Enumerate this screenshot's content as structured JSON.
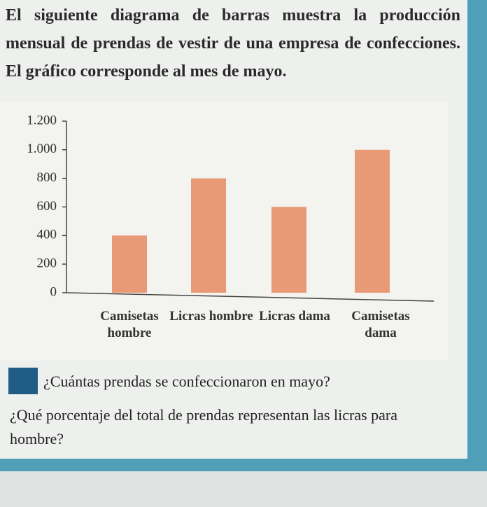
{
  "intro": "El siguiente diagrama de barras muestra la producción mensual de prendas de vestir de una empresa de confecciones. El gráfico corresponde al mes de mayo.",
  "chart_data": {
    "type": "bar",
    "categories": [
      "Camisetas hombre",
      "Licras hombre",
      "Licras dama",
      "Camisetas dama"
    ],
    "values": [
      400,
      800,
      600,
      1000
    ],
    "color": "#e58a62",
    "ylim": [
      0,
      1200
    ],
    "yticks": [
      0,
      200,
      400,
      600,
      800,
      {
        "value": 1000,
        "label": "1.000"
      },
      {
        "value": 1200,
        "label": "1.200"
      }
    ]
  },
  "questions": [
    "¿Cuántas prendas se confeccionaron en mayo?",
    "¿Qué porcentaje del total de prendas representan las licras para hombre?"
  ]
}
